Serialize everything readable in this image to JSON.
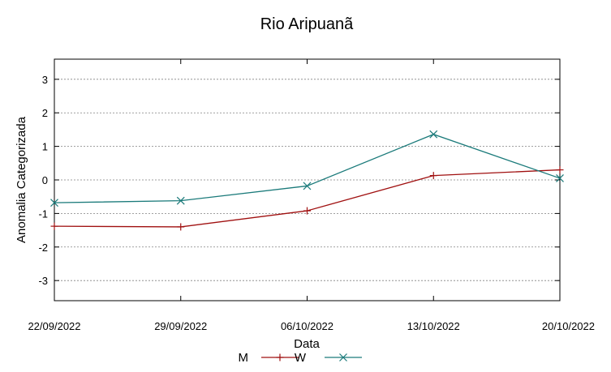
{
  "chart_data": {
    "type": "line",
    "title": "Rio Aripuanã",
    "xlabel": "Data",
    "ylabel": "Anomalia Categorizada",
    "categories": [
      "22/09/2022",
      "29/09/2022",
      "06/10/2022",
      "13/10/2022",
      "20/10/2022"
    ],
    "ylim": [
      -3.6,
      3.6
    ],
    "yticks": [
      -3,
      -2,
      -1,
      0,
      1,
      2,
      3
    ],
    "ytick_labels": [
      "-3",
      "-2",
      "-1",
      "0",
      "1",
      "2",
      "3"
    ],
    "grid": true,
    "legend_position": "bottom",
    "series": [
      {
        "name": "M",
        "color": "#a01010",
        "marker": "plus",
        "values": [
          -1.38,
          -1.4,
          -0.92,
          0.13,
          0.3
        ]
      },
      {
        "name": "W",
        "color": "#1a7a7a",
        "marker": "cross",
        "values": [
          -0.68,
          -0.62,
          -0.18,
          1.36,
          0.05
        ]
      }
    ]
  }
}
